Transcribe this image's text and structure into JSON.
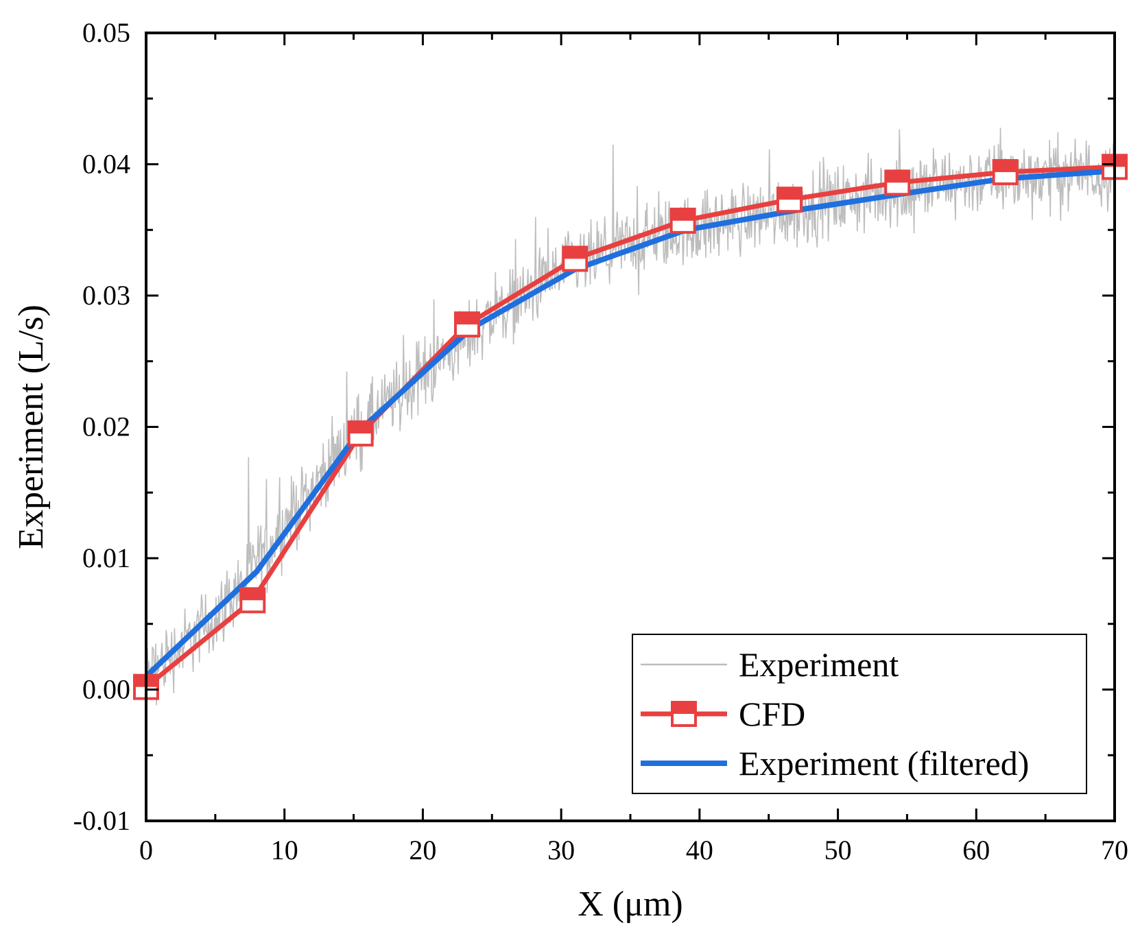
{
  "chart_data": {
    "type": "line",
    "title": "",
    "xlabel": "X (μm)",
    "ylabel": "Experiment (L/s)",
    "xlim": [
      0,
      70
    ],
    "ylim": [
      -0.01,
      0.05
    ],
    "x_ticks": [
      0,
      10,
      20,
      30,
      40,
      50,
      60,
      70
    ],
    "y_ticks": [
      -0.01,
      0.0,
      0.01,
      0.02,
      0.03,
      0.04,
      0.05
    ],
    "x_tick_labels": [
      "0",
      "10",
      "20",
      "30",
      "40",
      "50",
      "60",
      "70"
    ],
    "y_tick_labels": [
      "-0.01",
      "0.00",
      "0.01",
      "0.02",
      "0.03",
      "0.04",
      "0.05"
    ],
    "grid": false,
    "legend_position": "bottom-right",
    "series": [
      {
        "name": "Experiment",
        "style": "thin noisy line",
        "color": "#bdbdbd",
        "x_range": [
          0,
          70
        ],
        "trend_x": [
          0,
          5,
          10,
          15,
          20,
          25,
          30,
          35,
          40,
          45,
          50,
          55,
          60,
          65,
          70
        ],
        "trend_y": [
          0.001,
          0.0055,
          0.0125,
          0.0195,
          0.024,
          0.0285,
          0.0318,
          0.034,
          0.0352,
          0.0363,
          0.0372,
          0.038,
          0.0388,
          0.0392,
          0.0395
        ],
        "noise_amplitude": 0.004
      },
      {
        "name": "CFD",
        "style": "line with half-filled square markers",
        "color": "#e84040",
        "x": [
          0,
          7.7,
          15.5,
          23.2,
          31.0,
          38.8,
          46.5,
          54.3,
          62.1,
          70.0
        ],
        "y": [
          0.0002,
          0.0068,
          0.0195,
          0.0278,
          0.0328,
          0.0357,
          0.0373,
          0.0386,
          0.0394,
          0.0398
        ]
      },
      {
        "name": "Experiment (filtered)",
        "style": "thick line",
        "color": "#1f6fde",
        "x": [
          0,
          8,
          15.5,
          23.5,
          31,
          39,
          47,
          55,
          62,
          70
        ],
        "y": [
          0.001,
          0.009,
          0.0198,
          0.0275,
          0.032,
          0.035,
          0.0365,
          0.0378,
          0.0389,
          0.0395
        ]
      }
    ]
  }
}
